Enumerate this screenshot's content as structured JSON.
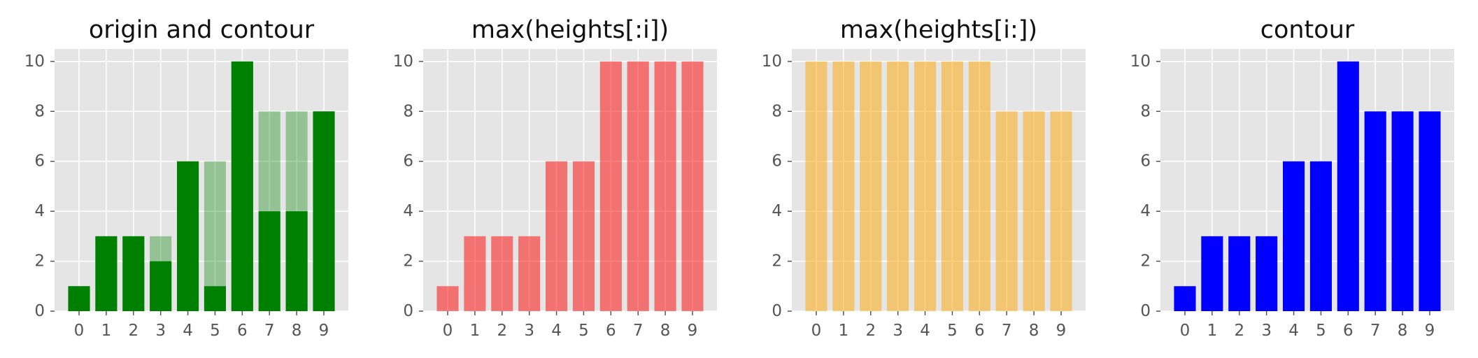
{
  "chart_data": [
    {
      "type": "bar",
      "title": "origin and contour",
      "categories": [
        "0",
        "1",
        "2",
        "3",
        "4",
        "5",
        "6",
        "7",
        "8",
        "9"
      ],
      "series": [
        {
          "values": [
            1,
            3,
            3,
            3,
            6,
            6,
            10,
            8,
            8,
            8
          ],
          "color": "#008000",
          "opacity": 0.35
        },
        {
          "values": [
            1,
            3,
            3,
            2,
            6,
            1,
            10,
            4,
            4,
            8
          ],
          "color": "#008000",
          "opacity": 1
        }
      ],
      "ylim": [
        0,
        10.5
      ],
      "yticks": [
        0,
        2,
        4,
        6,
        8,
        10
      ],
      "grid": true
    },
    {
      "type": "bar",
      "title": "max(heights[:i])",
      "categories": [
        "0",
        "1",
        "2",
        "3",
        "4",
        "5",
        "6",
        "7",
        "8",
        "9"
      ],
      "series": [
        {
          "values": [
            1,
            3,
            3,
            3,
            6,
            6,
            10,
            10,
            10,
            10
          ],
          "color": "#ff0000",
          "opacity": 0.5
        }
      ],
      "ylim": [
        0,
        10.5
      ],
      "yticks": [
        0,
        2,
        4,
        6,
        8,
        10
      ],
      "grid": true
    },
    {
      "type": "bar",
      "title": "max(heights[i:])",
      "categories": [
        "0",
        "1",
        "2",
        "3",
        "4",
        "5",
        "6",
        "7",
        "8",
        "9"
      ],
      "series": [
        {
          "values": [
            10,
            10,
            10,
            10,
            10,
            10,
            10,
            8,
            8,
            8
          ],
          "color": "#ffa500",
          "opacity": 0.5
        }
      ],
      "ylim": [
        0,
        10.5
      ],
      "yticks": [
        0,
        2,
        4,
        6,
        8,
        10
      ],
      "grid": true
    },
    {
      "type": "bar",
      "title": "contour",
      "categories": [
        "0",
        "1",
        "2",
        "3",
        "4",
        "5",
        "6",
        "7",
        "8",
        "9"
      ],
      "series": [
        {
          "values": [
            1,
            3,
            3,
            3,
            6,
            6,
            10,
            8,
            8,
            8
          ],
          "color": "#0000ff",
          "opacity": 1
        }
      ],
      "ylim": [
        0,
        10.5
      ],
      "yticks": [
        0,
        2,
        4,
        6,
        8,
        10
      ],
      "grid": true
    }
  ]
}
